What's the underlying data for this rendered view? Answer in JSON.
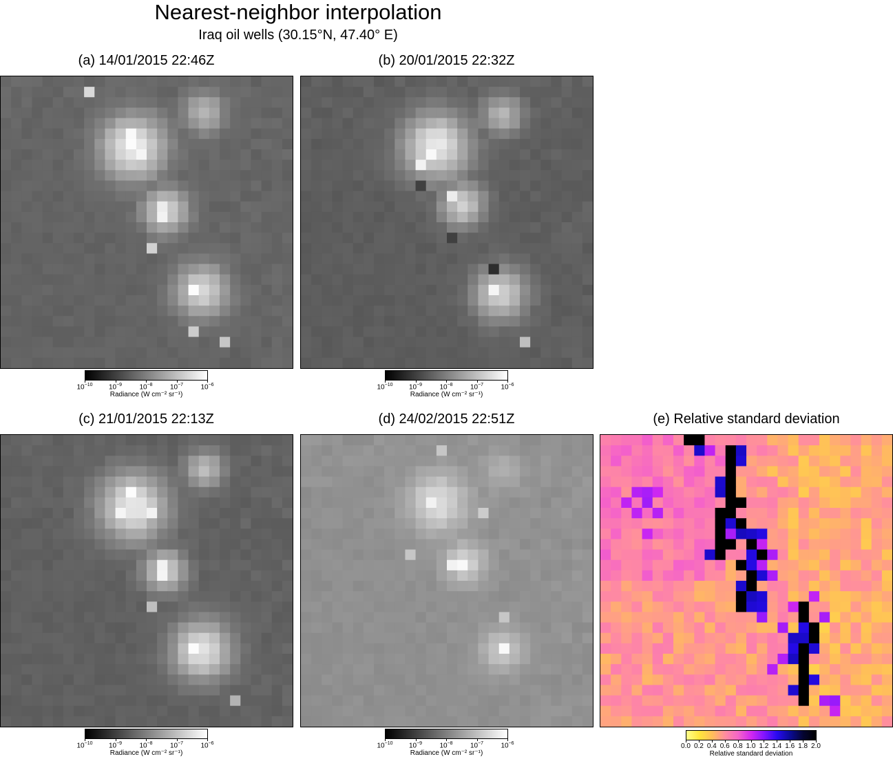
{
  "chart_data": {
    "type": "heatmap",
    "title": "Nearest-neighbor interpolation",
    "subtitle": "Iraq oil wells (30.15°N, 47.40° E)",
    "grid_size": [
      28,
      28
    ],
    "panels": [
      {
        "id": "a",
        "title": "(a) 14/01/2015 22:46Z",
        "value": "Radiance",
        "colormap": "gray",
        "scale": "log",
        "range": [
          1e-10,
          1e-06
        ],
        "background_log": -8.45,
        "sources": [
          {
            "x": 12.2,
            "y": 6.3,
            "peak_log": -6.25,
            "spread": 2.2
          },
          {
            "x": 19.0,
            "y": 3.0,
            "peak_log": -7.1,
            "spread": 1.4
          },
          {
            "x": 15.3,
            "y": 12.4,
            "peak_log": -6.6,
            "spread": 1.5
          },
          {
            "x": 18.8,
            "y": 20.1,
            "peak_log": -6.6,
            "spread": 1.8
          }
        ],
        "hot_pixels": [
          {
            "x": 12,
            "y": 6,
            "log": -6.05
          },
          {
            "x": 12,
            "y": 5,
            "log": -6.1
          },
          {
            "x": 13,
            "y": 7,
            "log": -6.15
          },
          {
            "x": 15,
            "y": 12,
            "log": -6.3
          },
          {
            "x": 15,
            "y": 13,
            "log": -6.2
          },
          {
            "x": 18,
            "y": 20,
            "log": -6.05
          },
          {
            "x": 8,
            "y": 1,
            "log": -6.6
          },
          {
            "x": 14,
            "y": 16,
            "log": -6.7
          },
          {
            "x": 18,
            "y": 24,
            "log": -6.8
          },
          {
            "x": 21,
            "y": 25,
            "log": -6.9
          }
        ],
        "colorbar": {
          "label": "Radiance (W cm⁻² sr⁻¹)",
          "ticks": [
            "10",
            "10",
            "10",
            "10",
            "10"
          ],
          "exponents": [
            "−10",
            "−9",
            "−8",
            "−7",
            "−6"
          ]
        }
      },
      {
        "id": "b",
        "title": "(b) 20/01/2015 22:32Z",
        "value": "Radiance",
        "colormap": "gray",
        "scale": "log",
        "range": [
          1e-10,
          1e-06
        ],
        "background_log": -8.55,
        "sources": [
          {
            "x": 12.5,
            "y": 6.2,
            "peak_log": -6.35,
            "spread": 2.3
          },
          {
            "x": 18.8,
            "y": 3.2,
            "peak_log": -7.1,
            "spread": 1.4
          },
          {
            "x": 15.0,
            "y": 11.8,
            "peak_log": -6.7,
            "spread": 1.5
          },
          {
            "x": 18.6,
            "y": 20.4,
            "peak_log": -6.7,
            "spread": 1.8
          }
        ],
        "hot_pixels": [
          {
            "x": 12,
            "y": 7,
            "log": -6.1
          },
          {
            "x": 11,
            "y": 8,
            "log": -6.2
          },
          {
            "x": 14,
            "y": 11,
            "log": -6.3
          },
          {
            "x": 18,
            "y": 20,
            "log": -6.15
          },
          {
            "x": 21,
            "y": 25,
            "log": -7.0
          },
          {
            "x": 18,
            "y": 18,
            "log": -9.3
          },
          {
            "x": 14,
            "y": 15,
            "log": -9.0
          },
          {
            "x": 11,
            "y": 10,
            "log": -9.0
          }
        ],
        "colorbar": {
          "label": "Radiance (W cm⁻² sr⁻¹)",
          "ticks": [
            "10",
            "10",
            "10",
            "10",
            "10"
          ],
          "exponents": [
            "−10",
            "−9",
            "−8",
            "−7",
            "−6"
          ]
        }
      },
      {
        "id": "c",
        "title": "(c) 21/01/2015 22:13Z",
        "value": "Radiance",
        "colormap": "gray",
        "scale": "log",
        "range": [
          1e-10,
          1e-06
        ],
        "background_log": -8.5,
        "sources": [
          {
            "x": 12.2,
            "y": 6.4,
            "peak_log": -6.3,
            "spread": 2.3
          },
          {
            "x": 19.0,
            "y": 2.8,
            "peak_log": -7.0,
            "spread": 1.3
          },
          {
            "x": 15.2,
            "y": 12.5,
            "peak_log": -6.6,
            "spread": 1.4
          },
          {
            "x": 18.8,
            "y": 20.2,
            "peak_log": -6.4,
            "spread": 2.0
          }
        ],
        "hot_pixels": [
          {
            "x": 12,
            "y": 5,
            "log": -6.05
          },
          {
            "x": 11,
            "y": 7,
            "log": -6.15
          },
          {
            "x": 14,
            "y": 7,
            "log": -6.2
          },
          {
            "x": 15,
            "y": 12,
            "log": -6.2
          },
          {
            "x": 15,
            "y": 13,
            "log": -6.15
          },
          {
            "x": 18,
            "y": 20,
            "log": -6.05
          },
          {
            "x": 14,
            "y": 16,
            "log": -7.0
          },
          {
            "x": 22,
            "y": 25,
            "log": -7.2
          }
        ],
        "colorbar": {
          "label": "Radiance (W cm⁻² sr⁻¹)",
          "ticks": [
            "10",
            "10",
            "10",
            "10",
            "10"
          ],
          "exponents": [
            "−10",
            "−9",
            "−8",
            "−7",
            "−6"
          ]
        }
      },
      {
        "id": "d",
        "title": "(d) 24/02/2015 22:51Z",
        "value": "Radiance",
        "colormap": "gray",
        "scale": "log",
        "range": [
          1e-10,
          1e-06
        ],
        "background_log": -7.75,
        "sources": [
          {
            "x": 12.6,
            "y": 6.0,
            "peak_log": -6.5,
            "spread": 2.0
          },
          {
            "x": 18.8,
            "y": 3.0,
            "peak_log": -7.2,
            "spread": 1.3
          },
          {
            "x": 15.2,
            "y": 11.8,
            "peak_log": -6.6,
            "spread": 1.4
          },
          {
            "x": 18.8,
            "y": 20.2,
            "peak_log": -6.8,
            "spread": 1.5
          }
        ],
        "hot_pixels": [
          {
            "x": 12,
            "y": 6,
            "log": -6.2
          },
          {
            "x": 15,
            "y": 12,
            "log": -6.1
          },
          {
            "x": 14,
            "y": 12,
            "log": -6.2
          },
          {
            "x": 19,
            "y": 20,
            "log": -6.1
          },
          {
            "x": 13,
            "y": 1,
            "log": -6.9
          },
          {
            "x": 10,
            "y": 11,
            "log": -6.9
          },
          {
            "x": 19,
            "y": 17,
            "log": -6.9
          },
          {
            "x": 17,
            "y": 7,
            "log": -6.8
          }
        ],
        "colorbar": {
          "label": "Radiance (W cm⁻² sr⁻¹)",
          "ticks": [
            "10",
            "10",
            "10",
            "10",
            "10"
          ],
          "exponents": [
            "−10",
            "−9",
            "−8",
            "−7",
            "−6"
          ]
        }
      },
      {
        "id": "e",
        "title": "(e) Relative standard deviation",
        "value": "Relative standard deviation",
        "colormap": "spring-magenta",
        "scale": "linear",
        "range": [
          0,
          2
        ],
        "background": 0.55,
        "black_track": [
          [
            8,
            0
          ],
          [
            9,
            0
          ],
          [
            12,
            1
          ],
          [
            12,
            2
          ],
          [
            12,
            3
          ],
          [
            12,
            4
          ],
          [
            12,
            5
          ],
          [
            12,
            6
          ],
          [
            13,
            6
          ],
          [
            12,
            7
          ],
          [
            11,
            7
          ],
          [
            11,
            8
          ],
          [
            11,
            9
          ],
          [
            11,
            10
          ],
          [
            12,
            10
          ],
          [
            11,
            11
          ],
          [
            13,
            8
          ],
          [
            14,
            10
          ],
          [
            15,
            11
          ],
          [
            13,
            12
          ],
          [
            14,
            13
          ],
          [
            14,
            14
          ],
          [
            13,
            15
          ],
          [
            13,
            16
          ],
          [
            19,
            16
          ],
          [
            19,
            17
          ],
          [
            20,
            18
          ],
          [
            20,
            19
          ],
          [
            19,
            20
          ],
          [
            19,
            21
          ],
          [
            19,
            22
          ],
          [
            19,
            23
          ],
          [
            19,
            24
          ],
          [
            19,
            25
          ]
        ],
        "blue_track": [
          [
            9,
            1
          ],
          [
            13,
            1
          ],
          [
            13,
            2
          ],
          [
            11,
            4
          ],
          [
            11,
            5
          ],
          [
            12,
            8
          ],
          [
            13,
            9
          ],
          [
            10,
            11
          ],
          [
            14,
            9
          ],
          [
            15,
            9
          ],
          [
            14,
            11
          ],
          [
            14,
            12
          ],
          [
            15,
            13
          ],
          [
            14,
            15
          ],
          [
            15,
            15
          ],
          [
            13,
            14
          ],
          [
            14,
            16
          ],
          [
            15,
            16
          ],
          [
            19,
            18
          ],
          [
            18,
            19
          ],
          [
            20,
            19
          ],
          [
            19,
            19
          ],
          [
            18,
            20
          ],
          [
            20,
            20
          ],
          [
            18,
            21
          ],
          [
            18,
            24
          ],
          [
            20,
            23
          ]
        ],
        "violet_pixels": [
          [
            3,
            5
          ],
          [
            4,
            5
          ],
          [
            4,
            6
          ],
          [
            5,
            5
          ],
          [
            5,
            7
          ],
          [
            3,
            7
          ],
          [
            2,
            6
          ],
          [
            10,
            1
          ],
          [
            12,
            9
          ],
          [
            15,
            10
          ],
          [
            16,
            11
          ],
          [
            15,
            12
          ],
          [
            16,
            13
          ],
          [
            20,
            15
          ],
          [
            21,
            17
          ],
          [
            15,
            17
          ],
          [
            17,
            18
          ],
          [
            18,
            16
          ],
          [
            21,
            25
          ],
          [
            22,
            25
          ],
          [
            22,
            26
          ],
          [
            24,
            28
          ],
          [
            17,
            21
          ],
          [
            16,
            22
          ],
          [
            4,
            9
          ]
        ],
        "yellow_pixels": [
          [
            16,
            3
          ],
          [
            19,
            3
          ],
          [
            20,
            3
          ],
          [
            19,
            2
          ],
          [
            17,
            4
          ],
          [
            20,
            4
          ],
          [
            21,
            4
          ],
          [
            19,
            5
          ],
          [
            20,
            18
          ],
          [
            21,
            18
          ],
          [
            21,
            19
          ],
          [
            20,
            22
          ],
          [
            22,
            16
          ],
          [
            22,
            17
          ]
        ],
        "colorbar": {
          "label": "Relative standard deviation",
          "ticks": [
            "0.0",
            "0.2",
            "0.4",
            "0.6",
            "0.8",
            "1.0",
            "1.2",
            "1.4",
            "1.6",
            "1.8",
            "2.0"
          ]
        }
      }
    ]
  }
}
